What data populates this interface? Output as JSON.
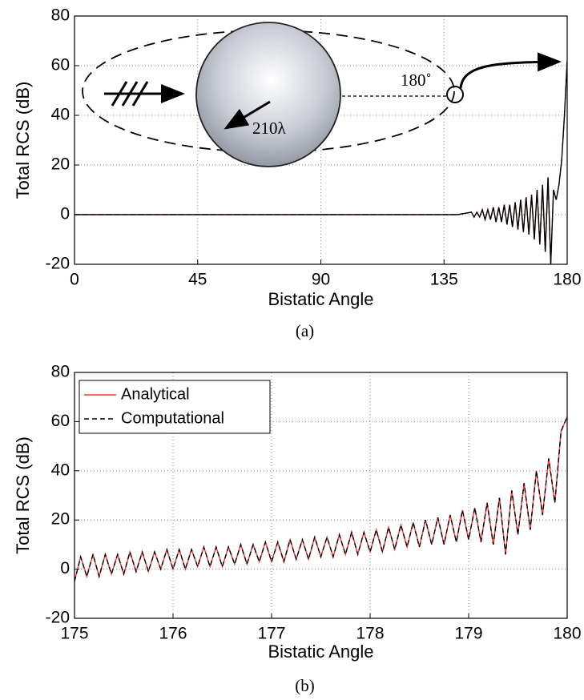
{
  "chart_data": [
    {
      "type": "line",
      "caption": "(a)",
      "x_label": "Bistatic Angle",
      "y_label": "Total RCS (dB)",
      "annotations": [
        "180˚",
        "210λ"
      ],
      "xlim": [
        0,
        180
      ],
      "xticks": [
        0,
        45,
        90,
        135,
        180
      ],
      "ylim": [
        -20,
        80
      ],
      "yticks": [
        -20,
        0,
        20,
        40,
        60,
        80
      ],
      "grid": true,
      "legend": false,
      "x": [
        0,
        10,
        20,
        30,
        40,
        50,
        60,
        70,
        80,
        90,
        100,
        110,
        120,
        130,
        140,
        145,
        146,
        147,
        148,
        149,
        150,
        151,
        152,
        153,
        154,
        155,
        156,
        157,
        158,
        159,
        160,
        161,
        162,
        163,
        164,
        165,
        166,
        167,
        168,
        169,
        170,
        171,
        172,
        173,
        174,
        175,
        176,
        177,
        178,
        179,
        180
      ],
      "series": [
        {
          "color": "#ff3333",
          "dash": true,
          "values": [
            0,
            0,
            0,
            0,
            0,
            0,
            0,
            0,
            0,
            0,
            0,
            0,
            0,
            0,
            0,
            1,
            -1,
            1,
            -1,
            2,
            -2,
            2,
            -2,
            3,
            -3,
            3,
            -3,
            4,
            -4,
            4,
            -5,
            5,
            -6,
            6,
            -7,
            7,
            -8,
            8,
            -10,
            10,
            -12,
            12,
            -15,
            15,
            -20,
            10,
            6,
            12,
            22,
            40,
            62
          ]
        },
        {
          "color": "#000000",
          "dash": false,
          "values": [
            0,
            0,
            0,
            0,
            0,
            0,
            0,
            0,
            0,
            0,
            0,
            0,
            0,
            0,
            0,
            1,
            -1,
            1,
            -1,
            2,
            -2,
            2,
            -2,
            3,
            -3,
            3,
            -3,
            4,
            -4,
            4,
            -5,
            5,
            -6,
            6,
            -7,
            7,
            -8,
            8,
            -10,
            10,
            -12,
            12,
            -15,
            15,
            -20,
            10,
            6,
            12,
            22,
            40,
            62
          ]
        }
      ]
    },
    {
      "type": "line",
      "caption": "(b)",
      "x_label": "Bistatic Angle",
      "y_label": "Total RCS (dB)",
      "xlim": [
        175,
        180
      ],
      "xticks": [
        175,
        176,
        177,
        178,
        179,
        180
      ],
      "ylim": [
        -20,
        80
      ],
      "yticks": [
        -20,
        0,
        20,
        40,
        60,
        80
      ],
      "grid": true,
      "legend": "upper left",
      "x": [
        175,
        175.0625,
        175.125,
        175.1875,
        175.25,
        175.3125,
        175.375,
        175.4375,
        175.5,
        175.5625,
        175.625,
        175.6875,
        175.75,
        175.8125,
        175.875,
        175.9375,
        176,
        176.0625,
        176.125,
        176.1875,
        176.25,
        176.3125,
        176.375,
        176.4375,
        176.5,
        176.5625,
        176.625,
        176.6875,
        176.75,
        176.8125,
        176.875,
        176.9375,
        177,
        177.0625,
        177.125,
        177.1875,
        177.25,
        177.3125,
        177.375,
        177.4375,
        177.5,
        177.5625,
        177.625,
        177.6875,
        177.75,
        177.8125,
        177.875,
        177.9375,
        178,
        178.0625,
        178.125,
        178.1875,
        178.25,
        178.3125,
        178.375,
        178.4375,
        178.5,
        178.5625,
        178.625,
        178.6875,
        178.75,
        178.8125,
        178.875,
        178.9375,
        179,
        179.0625,
        179.125,
        179.1875,
        179.25,
        179.3125,
        179.375,
        179.4375,
        179.5,
        179.5625,
        179.625,
        179.6875,
        179.75,
        179.8125,
        179.875,
        179.9375,
        180
      ],
      "series": [
        {
          "name": "Analytical",
          "color": "#ff3333",
          "dash": false,
          "values": [
            -5,
            5,
            -3,
            6,
            -3,
            6,
            -2,
            6,
            -2,
            7,
            -1,
            7,
            -1,
            7,
            0,
            8,
            0,
            8,
            0,
            8,
            1,
            9,
            1,
            9,
            1,
            9,
            2,
            10,
            2,
            10,
            3,
            11,
            3,
            11,
            3,
            12,
            4,
            12,
            4,
            13,
            5,
            13,
            5,
            14,
            6,
            15,
            6,
            15,
            7,
            16,
            7,
            17,
            8,
            18,
            9,
            19,
            9,
            20,
            10,
            21,
            10,
            22,
            11,
            24,
            12,
            25,
            11,
            27,
            10,
            29,
            6,
            32,
            14,
            35,
            16,
            40,
            22,
            45,
            27,
            56,
            62
          ]
        },
        {
          "name": "Computational",
          "color": "#000000",
          "dash": true,
          "values": [
            -5,
            5,
            -3,
            6,
            -3,
            6,
            -2,
            6,
            -2,
            7,
            -1,
            7,
            -1,
            7,
            0,
            8,
            0,
            8,
            0,
            8,
            1,
            9,
            1,
            9,
            1,
            9,
            2,
            10,
            2,
            10,
            3,
            11,
            3,
            11,
            3,
            12,
            4,
            12,
            4,
            13,
            5,
            13,
            5,
            14,
            6,
            15,
            6,
            15,
            7,
            16,
            7,
            17,
            8,
            18,
            9,
            19,
            9,
            20,
            10,
            21,
            10,
            22,
            11,
            24,
            12,
            25,
            11,
            27,
            10,
            29,
            6,
            32,
            14,
            35,
            16,
            40,
            22,
            45,
            27,
            56,
            62
          ]
        }
      ]
    }
  ]
}
